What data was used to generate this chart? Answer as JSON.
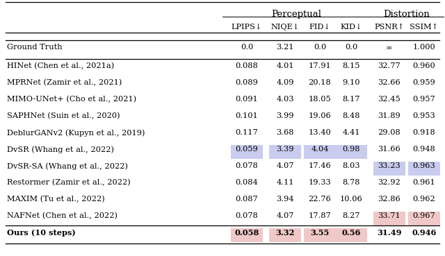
{
  "subheaders": [
    "LPIPS↓",
    "NIQE↓",
    "FID↓",
    "KID↓",
    "PSNR↑",
    "SSIM↑"
  ],
  "rows": [
    {
      "name": "Ground Truth",
      "values": [
        "0.0",
        "3.21",
        "0.0",
        "0.0",
        "∞",
        "1.000"
      ],
      "bold": false,
      "separator_before": true,
      "highlights": [],
      "hi_color": "none"
    },
    {
      "name": "HINet (Chen et al., 2021a)",
      "values": [
        "0.088",
        "4.01",
        "17.91",
        "8.15",
        "32.77",
        "0.960"
      ],
      "bold": false,
      "separator_before": true,
      "highlights": [],
      "hi_color": "none"
    },
    {
      "name": "MPRNet (Zamir et al., 2021)",
      "values": [
        "0.089",
        "4.09",
        "20.18",
        "9.10",
        "32.66",
        "0.959"
      ],
      "bold": false,
      "separator_before": false,
      "highlights": [],
      "hi_color": "none"
    },
    {
      "name": "MIMO-UNet+ (Cho et al., 2021)",
      "values": [
        "0.091",
        "4.03",
        "18.05",
        "8.17",
        "32.45",
        "0.957"
      ],
      "bold": false,
      "separator_before": false,
      "highlights": [],
      "hi_color": "none"
    },
    {
      "name": "SAPHNet (Suin et al., 2020)",
      "values": [
        "0.101",
        "3.99",
        "19.06",
        "8.48",
        "31.89",
        "0.953"
      ],
      "bold": false,
      "separator_before": false,
      "highlights": [],
      "hi_color": "none"
    },
    {
      "name": "DeblurGANv2 (Kupyn et al., 2019)",
      "values": [
        "0.117",
        "3.68",
        "13.40",
        "4.41",
        "29.08",
        "0.918"
      ],
      "bold": false,
      "separator_before": false,
      "highlights": [],
      "hi_color": "none"
    },
    {
      "name": "DvSR (Whang et al., 2022)",
      "values": [
        "0.059",
        "3.39",
        "4.04",
        "0.98",
        "31.66",
        "0.948"
      ],
      "bold": false,
      "separator_before": false,
      "highlights": [
        0,
        1,
        2,
        3
      ],
      "hi_color": "blue"
    },
    {
      "name": "DvSR-SA (Whang et al., 2022)",
      "values": [
        "0.078",
        "4.07",
        "17.46",
        "8.03",
        "33.23",
        "0.963"
      ],
      "bold": false,
      "separator_before": false,
      "highlights": [
        4,
        5
      ],
      "hi_color": "blue"
    },
    {
      "name": "Restormer (Zamir et al., 2022)",
      "values": [
        "0.084",
        "4.11",
        "19.33",
        "8.78",
        "32.92",
        "0.961"
      ],
      "bold": false,
      "separator_before": false,
      "highlights": [],
      "hi_color": "none"
    },
    {
      "name": "MAXIM (Tu et al., 2022)",
      "values": [
        "0.087",
        "3.94",
        "22.76",
        "10.06",
        "32.86",
        "0.962"
      ],
      "bold": false,
      "separator_before": false,
      "highlights": [],
      "hi_color": "none"
    },
    {
      "name": "NAFNet (Chen et al., 2022)",
      "values": [
        "0.078",
        "4.07",
        "17.87",
        "8.27",
        "33.71",
        "0.967"
      ],
      "bold": false,
      "separator_before": false,
      "highlights": [
        4,
        5
      ],
      "hi_color": "pink"
    },
    {
      "name": "Ours (10 steps)",
      "values": [
        "0.058",
        "3.32",
        "3.55",
        "0.56",
        "31.49",
        "0.946"
      ],
      "bold": true,
      "separator_before": true,
      "highlights": [
        0,
        1,
        2,
        3
      ],
      "hi_color": "pink"
    }
  ],
  "hi_blue": "#c8ccee",
  "hi_pink": "#f0c8c8",
  "bg": "#ffffff"
}
